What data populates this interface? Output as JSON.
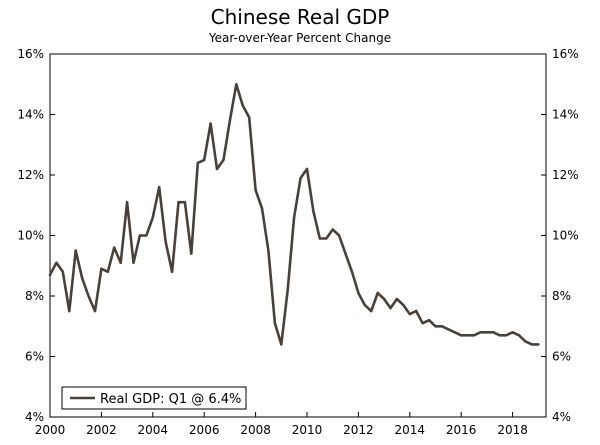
{
  "chart_data": {
    "type": "line",
    "title": "Chinese Real GDP",
    "subtitle": "Year-over-Year Percent Change",
    "xlabel": "",
    "ylabel": "",
    "xlim": [
      2000,
      2019.3
    ],
    "ylim": [
      4,
      16
    ],
    "x_ticks": [
      2000,
      2002,
      2004,
      2006,
      2008,
      2010,
      2012,
      2014,
      2016,
      2018
    ],
    "x_tick_labels": [
      "2000",
      "2002",
      "2004",
      "2006",
      "2008",
      "2010",
      "2012",
      "2014",
      "2016",
      "2018"
    ],
    "y_ticks": [
      4,
      6,
      8,
      10,
      12,
      14,
      16
    ],
    "y_tick_labels": [
      "4%",
      "6%",
      "8%",
      "10%",
      "12%",
      "14%",
      "16%"
    ],
    "right_axis": true,
    "grid": false,
    "legend": {
      "position": "bottom-left",
      "label": "Real GDP: Q1 @ 6.4%"
    },
    "series": [
      {
        "name": "Real GDP: Q1 @ 6.4%",
        "color": "#4b4038",
        "x": [
          2000.0,
          2000.25,
          2000.5,
          2000.75,
          2001.0,
          2001.25,
          2001.5,
          2001.75,
          2002.0,
          2002.25,
          2002.5,
          2002.75,
          2003.0,
          2003.25,
          2003.5,
          2003.75,
          2004.0,
          2004.25,
          2004.5,
          2004.75,
          2005.0,
          2005.25,
          2005.5,
          2005.75,
          2006.0,
          2006.25,
          2006.5,
          2006.75,
          2007.0,
          2007.25,
          2007.5,
          2007.75,
          2008.0,
          2008.25,
          2008.5,
          2008.75,
          2009.0,
          2009.25,
          2009.5,
          2009.75,
          2010.0,
          2010.25,
          2010.5,
          2010.75,
          2011.0,
          2011.25,
          2011.5,
          2011.75,
          2012.0,
          2012.25,
          2012.5,
          2012.75,
          2013.0,
          2013.25,
          2013.5,
          2013.75,
          2014.0,
          2014.25,
          2014.5,
          2014.75,
          2015.0,
          2015.25,
          2015.5,
          2015.75,
          2016.0,
          2016.25,
          2016.5,
          2016.75,
          2017.0,
          2017.25,
          2017.5,
          2017.75,
          2018.0,
          2018.25,
          2018.5,
          2018.75,
          2019.0
        ],
        "values": [
          8.7,
          9.1,
          8.8,
          7.5,
          9.5,
          8.6,
          8.0,
          7.5,
          8.9,
          8.8,
          9.6,
          9.1,
          11.1,
          9.1,
          10.0,
          10.0,
          10.6,
          11.6,
          9.8,
          8.8,
          11.1,
          11.1,
          9.4,
          12.4,
          12.5,
          13.7,
          12.2,
          12.5,
          13.8,
          15.0,
          14.3,
          13.9,
          11.5,
          10.9,
          9.5,
          7.1,
          6.4,
          8.2,
          10.6,
          11.9,
          12.2,
          10.8,
          9.9,
          9.9,
          10.2,
          10.0,
          9.4,
          8.8,
          8.1,
          7.7,
          7.5,
          8.1,
          7.9,
          7.6,
          7.9,
          7.7,
          7.4,
          7.5,
          7.1,
          7.2,
          7.0,
          7.0,
          6.9,
          6.8,
          6.7,
          6.7,
          6.7,
          6.8,
          6.8,
          6.8,
          6.7,
          6.7,
          6.8,
          6.7,
          6.5,
          6.4,
          6.4
        ]
      }
    ]
  }
}
